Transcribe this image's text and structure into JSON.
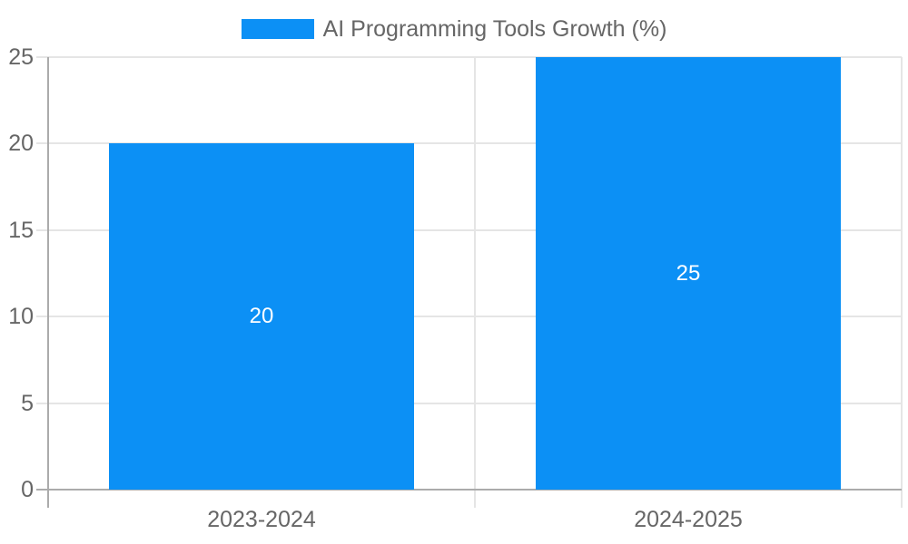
{
  "legend": {
    "label": "AI Programming Tools Growth (%)"
  },
  "colors": {
    "bar": "#0c90f5",
    "grid_line": "#e5e5e5",
    "axis_line": "#ababab",
    "tick_text": "#666666",
    "value_label_text": "#ffffff",
    "background": "#ffffff"
  },
  "chart_data": {
    "type": "bar",
    "title": "AI Programming Tools Growth (%)",
    "categories": [
      "2023-2024",
      "2024-2025"
    ],
    "values": [
      20,
      25
    ],
    "value_labels": [
      "20",
      "25"
    ],
    "xlabel": "",
    "ylabel": "",
    "ylim": [
      0,
      25
    ],
    "yticks": [
      0,
      5,
      10,
      15,
      20,
      25
    ],
    "grid": true,
    "legend_position": "top-center",
    "value_labels_position": "inside-center"
  }
}
